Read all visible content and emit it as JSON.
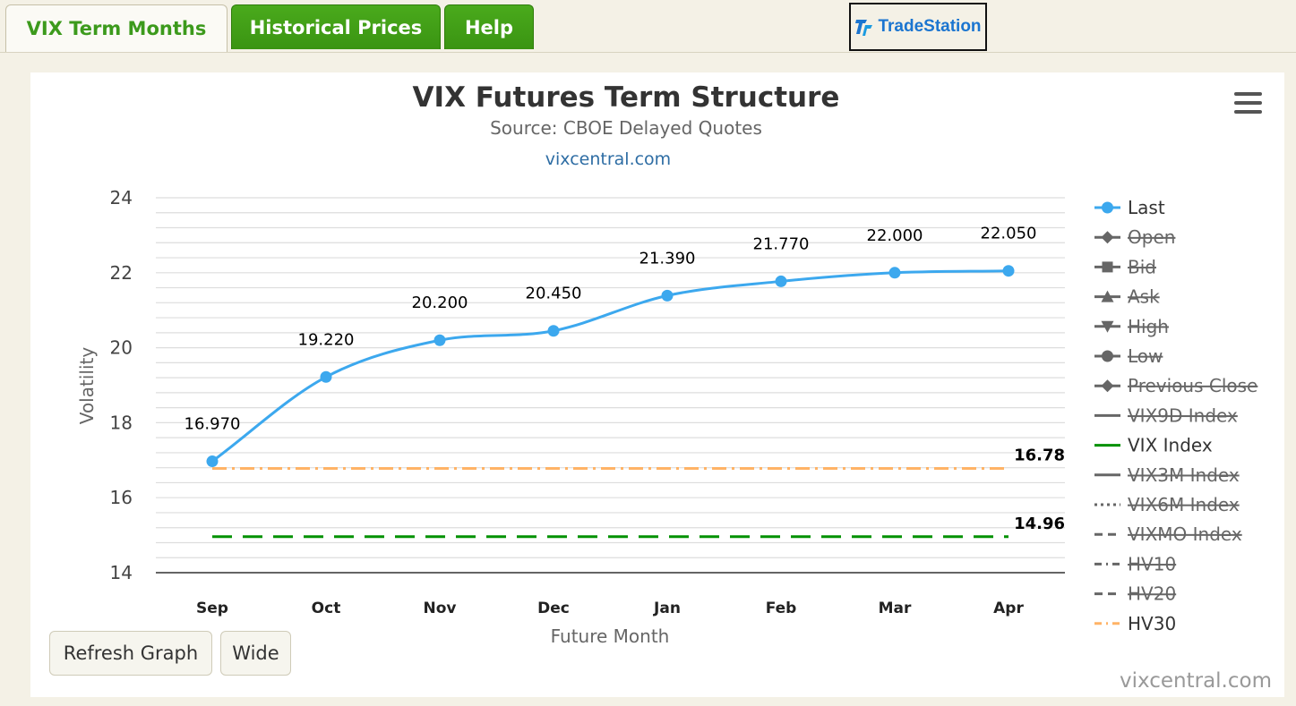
{
  "tabs": [
    {
      "label": "VIX Term Months",
      "active": true
    },
    {
      "label": "Historical Prices",
      "active": false
    },
    {
      "label": "Help",
      "active": false
    }
  ],
  "logo": {
    "text": "TradeStation"
  },
  "buttons": {
    "refresh": "Refresh Graph",
    "wide": "Wide"
  },
  "credit": "vixcentral.com",
  "colors": {
    "last": "#3ca8ee",
    "vix_index": "#009100",
    "hv30": "#ffb366",
    "disabled": "#666666",
    "tab_green": "#3a9412"
  },
  "chart_data": {
    "type": "line",
    "title": "VIX Futures Term Structure",
    "subtitle": "Source: CBOE Delayed Quotes",
    "link": "vixcentral.com",
    "xlabel": "Future Month",
    "ylabel": "Volatility",
    "categories": [
      "Sep",
      "Oct",
      "Nov",
      "Dec",
      "Jan",
      "Feb",
      "Mar",
      "Apr"
    ],
    "ylim": [
      14,
      24
    ],
    "yticks": [
      14,
      16,
      18,
      20,
      22,
      24
    ],
    "grid": true,
    "legend_placement": "right",
    "series": [
      {
        "name": "Last",
        "values": [
          16.97,
          19.22,
          20.2,
          20.45,
          21.39,
          21.77,
          22.0,
          22.05
        ],
        "labels": [
          "16.970",
          "19.220",
          "20.200",
          "20.450",
          "21.390",
          "21.770",
          "22.000",
          "22.050"
        ],
        "color": "#3ca8ee",
        "visible": true
      },
      {
        "name": "VIX Index",
        "constant": 14.96,
        "label": "14.96",
        "color": "#009100",
        "dash": "long-dash",
        "visible": true
      },
      {
        "name": "HV30",
        "constant": 16.78,
        "label": "16.78",
        "color": "#ffb366",
        "dash": "dash-dot",
        "visible": true
      }
    ],
    "legend": [
      {
        "name": "Last",
        "marker": "circle",
        "line": "solid",
        "visible": true,
        "color": "#3ca8ee"
      },
      {
        "name": "Open",
        "marker": "diamond",
        "line": "solid",
        "visible": false,
        "color": "#666666"
      },
      {
        "name": "Bid",
        "marker": "square",
        "line": "solid",
        "visible": false,
        "color": "#666666"
      },
      {
        "name": "Ask",
        "marker": "triangle-up",
        "line": "solid",
        "visible": false,
        "color": "#666666"
      },
      {
        "name": "High",
        "marker": "triangle-down",
        "line": "solid",
        "visible": false,
        "color": "#666666"
      },
      {
        "name": "Low",
        "marker": "circle",
        "line": "solid",
        "visible": false,
        "color": "#666666"
      },
      {
        "name": "Previous Close",
        "marker": "diamond",
        "line": "solid",
        "visible": false,
        "color": "#666666"
      },
      {
        "name": "VIX9D Index",
        "marker": "none",
        "line": "solid",
        "visible": false,
        "color": "#666666"
      },
      {
        "name": "VIX Index",
        "marker": "none",
        "line": "solid",
        "visible": true,
        "color": "#009100"
      },
      {
        "name": "VIX3M Index",
        "marker": "none",
        "line": "solid",
        "visible": false,
        "color": "#666666"
      },
      {
        "name": "VIX6M Index",
        "marker": "none",
        "line": "dotted",
        "visible": false,
        "color": "#666666"
      },
      {
        "name": "VIXMO Index",
        "marker": "none",
        "line": "dash",
        "visible": false,
        "color": "#666666"
      },
      {
        "name": "HV10",
        "marker": "none",
        "line": "dash-dot",
        "visible": false,
        "color": "#666666"
      },
      {
        "name": "HV20",
        "marker": "none",
        "line": "dash",
        "visible": false,
        "color": "#666666"
      },
      {
        "name": "HV30",
        "marker": "none",
        "line": "dash-dot",
        "visible": true,
        "color": "#ffb366"
      }
    ]
  }
}
